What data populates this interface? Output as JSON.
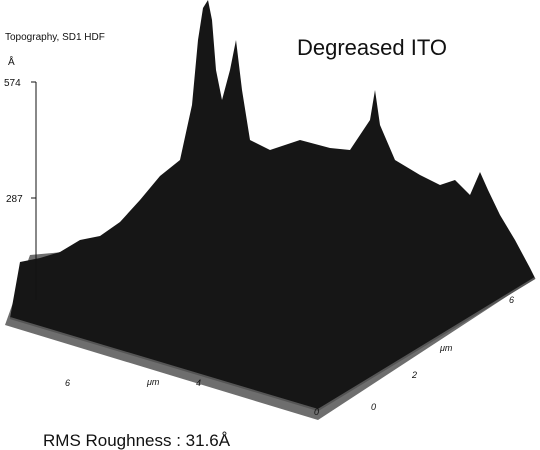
{
  "figure": {
    "caption": "Topography, SD1 HDF",
    "title": "Degreased ITO",
    "z_axis": {
      "unit": "Å",
      "ticks": [
        "574",
        "287"
      ]
    },
    "left_axis": {
      "labels": [
        "6",
        "μm",
        "4",
        "0"
      ]
    },
    "right_axis": {
      "labels": [
        "0",
        "2",
        "μm",
        "6"
      ]
    },
    "footer": "RMS Roughness : 31.6Å"
  }
}
